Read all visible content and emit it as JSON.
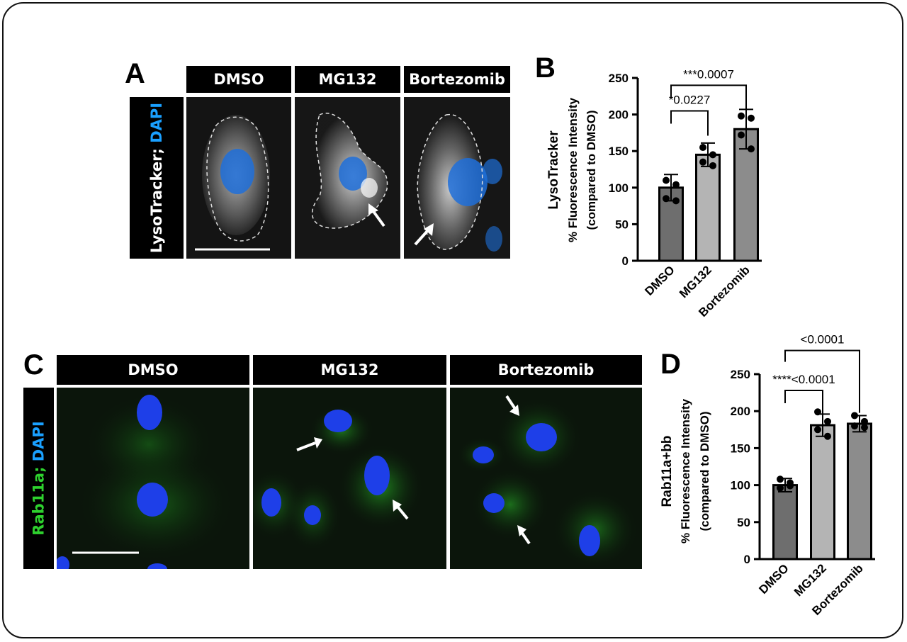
{
  "panels": {
    "A": {
      "letter": "A",
      "headers": [
        "DMSO",
        "MG132",
        "Bortezomib"
      ],
      "row_label": {
        "part1": "LysoTracker;",
        "part2": "DAPI"
      }
    },
    "B": {
      "letter": "B"
    },
    "C": {
      "letter": "C",
      "headers": [
        "DMSO",
        "MG132",
        "Bortezomib"
      ],
      "row_label": {
        "part1": "Rab11a;",
        "part2": "DAPI"
      }
    },
    "D": {
      "letter": "D"
    }
  },
  "colors": {
    "dapi_blue": "#1e6fd9",
    "rab_green": "#2ed12e",
    "bar_dmso": "#6e6e6e",
    "bar_mg132": "#b4b4b4",
    "bar_bortezomib": "#8c8c8c"
  },
  "chart_data": [
    {
      "type": "bar",
      "panel": "B",
      "categories": [
        "DMSO",
        "MG132",
        "Bortezomib"
      ],
      "values": [
        100,
        145,
        180
      ],
      "errors": [
        18,
        16,
        27
      ],
      "points": [
        [
          110,
          104,
          85,
          82
        ],
        [
          155,
          145,
          135,
          130
        ],
        [
          198,
          195,
          172,
          153
        ]
      ],
      "ylabel_line1": "LysoTracker",
      "ylabel_line2": "% Fluorescence Intensity",
      "ylabel_line3": "(compared to DMSO)",
      "yticks": [
        "0",
        "50",
        "100",
        "150",
        "200",
        "250"
      ],
      "ylim": [
        0,
        250
      ],
      "annotations": [
        {
          "text": "*0.0227",
          "from": 0,
          "to": 1,
          "y": 205
        },
        {
          "text": "***0.0007",
          "from": 0,
          "to": 2,
          "y": 240
        }
      ]
    },
    {
      "type": "bar",
      "panel": "D",
      "categories": [
        "DMSO",
        "MG132",
        "Bortezomib"
      ],
      "values": [
        100,
        181,
        183
      ],
      "errors": [
        9,
        15,
        11
      ],
      "points": [
        [
          108,
          99,
          96,
          103
        ],
        [
          199,
          186,
          175,
          166
        ],
        [
          194,
          186,
          180,
          178
        ]
      ],
      "ylabel_line1": "Rab11a+bb",
      "ylabel_line2": "% Fluorescence Intensity",
      "ylabel_line3": "(compared to DMSO)",
      "yticks": [
        "0",
        "50",
        "100",
        "150",
        "200",
        "250"
      ],
      "ylim": [
        0,
        250
      ],
      "annotations": [
        {
          "text": "****<0.0001",
          "from": 0,
          "to": 1,
          "y": 228
        },
        {
          "text": "<0.0001",
          "from": 0,
          "to": 2,
          "y": 282
        }
      ]
    }
  ]
}
